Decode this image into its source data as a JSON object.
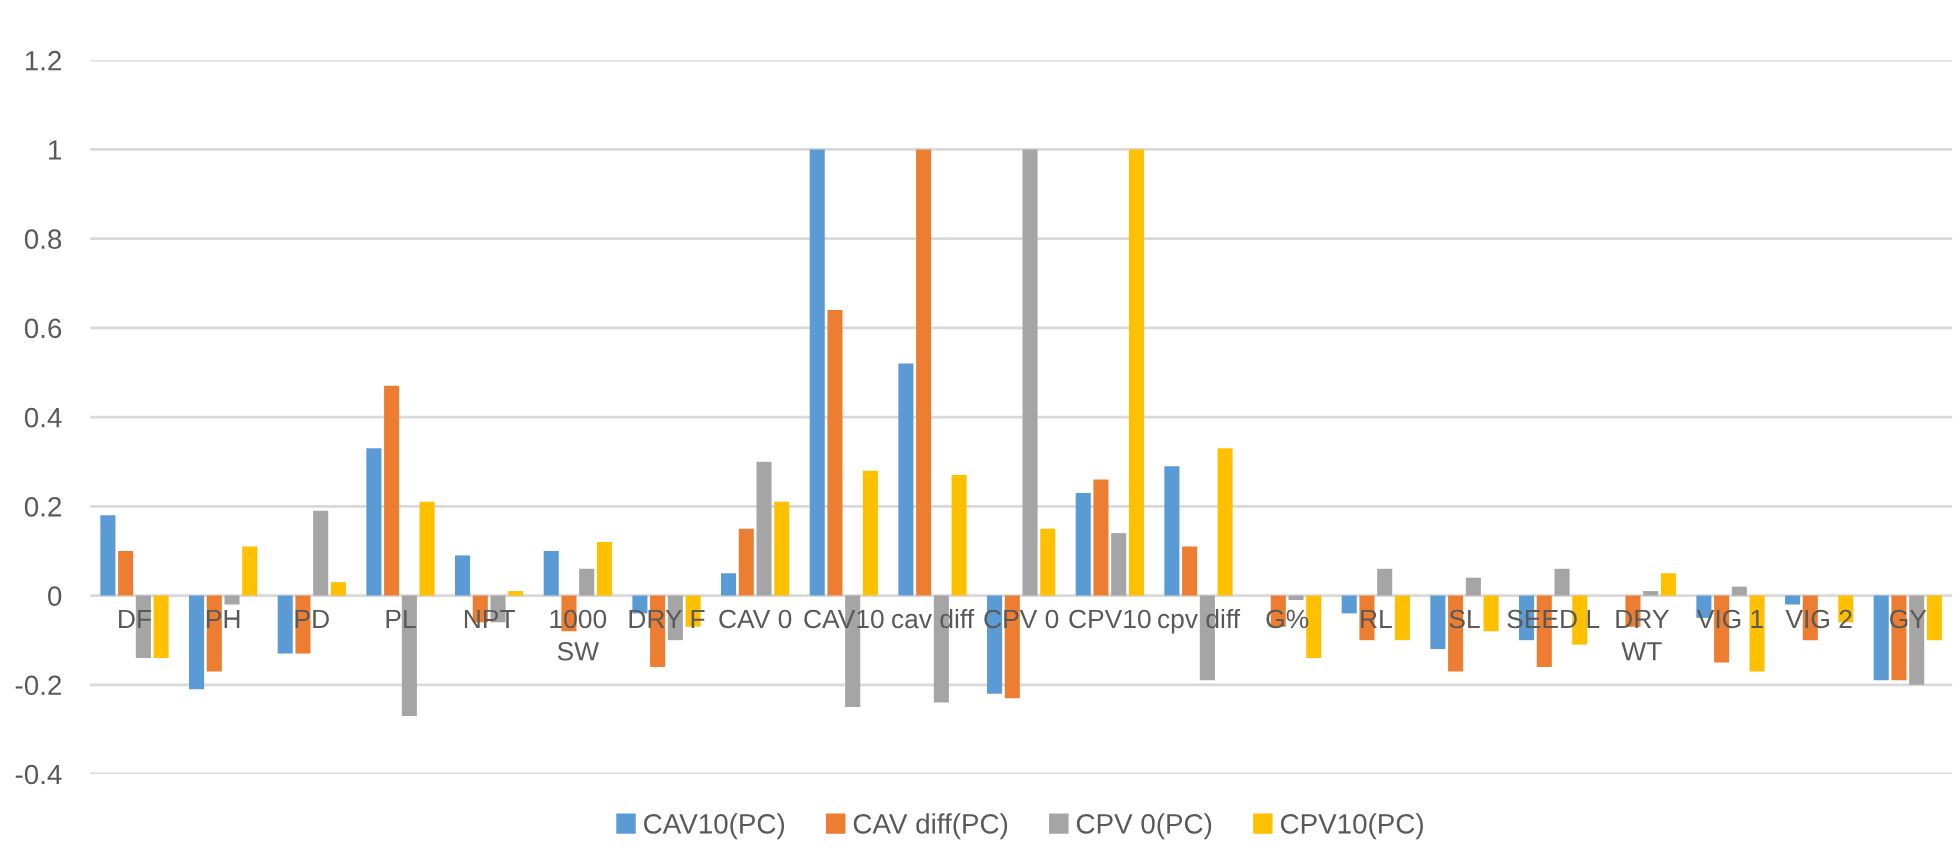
{
  "chart_data": {
    "type": "bar",
    "categories": [
      "DF",
      "PH",
      "PD",
      "PL",
      "NPT",
      "1000\nSW",
      "DRY F",
      "CAV 0",
      "CAV10",
      "cav diff",
      "CPV 0",
      "CPV10",
      "cpv diff",
      "G%",
      "RL",
      "SL",
      "SEED L",
      "DRY\nWT",
      "VIG 1",
      "VIG 2",
      "GY"
    ],
    "series": [
      {
        "name": "CAV10(PC)",
        "color": "#5b9bd5",
        "values": [
          0.18,
          -0.21,
          -0.13,
          0.33,
          0.09,
          0.1,
          -0.04,
          0.05,
          1.0,
          0.52,
          -0.22,
          0.23,
          0.29,
          0.0,
          -0.04,
          -0.12,
          -0.1,
          0.0,
          -0.05,
          -0.02,
          -0.19
        ]
      },
      {
        "name": "CAV diff(PC)",
        "color": "#ed7d31",
        "values": [
          0.1,
          -0.17,
          -0.13,
          0.47,
          -0.06,
          -0.08,
          -0.16,
          0.15,
          0.64,
          1.0,
          -0.23,
          0.26,
          0.11,
          -0.07,
          -0.1,
          -0.17,
          -0.16,
          -0.07,
          -0.15,
          -0.1,
          -0.19
        ]
      },
      {
        "name": "CPV 0(PC)",
        "color": "#a5a5a5",
        "values": [
          -0.14,
          -0.02,
          0.19,
          -0.27,
          -0.06,
          0.06,
          -0.1,
          0.3,
          -0.25,
          -0.24,
          1.0,
          0.14,
          -0.19,
          -0.01,
          0.06,
          0.04,
          0.06,
          0.01,
          0.02,
          0.0,
          -0.2
        ]
      },
      {
        "name": "CPV10(PC)",
        "color": "#ffc000",
        "values": [
          -0.14,
          0.11,
          0.03,
          0.21,
          0.01,
          0.12,
          -0.07,
          0.21,
          0.28,
          0.27,
          0.15,
          1.0,
          0.33,
          -0.14,
          -0.1,
          -0.08,
          -0.11,
          0.05,
          -0.17,
          -0.06,
          -0.1
        ]
      }
    ],
    "ylim": [
      -0.4,
      1.2
    ],
    "yticks": [
      -0.4,
      -0.2,
      0,
      0.2,
      0.4,
      0.6,
      0.8,
      1,
      1.2
    ],
    "grid": "y",
    "legend": "bottom"
  }
}
